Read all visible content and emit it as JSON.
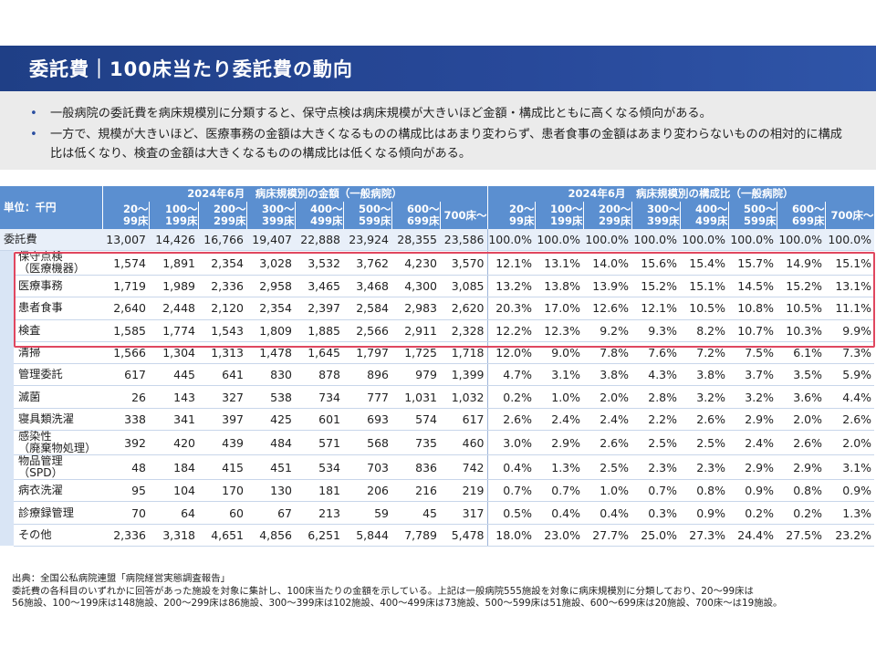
{
  "title": "委託費｜100床当たり委託費の動向",
  "bullets": [
    "一般病院の委託費を病床規模別に分類すると、保守点検は病床規模が大きいほど金額・構成比ともに高くなる傾向がある。",
    "一方で、規模が大きいほど、医療事務の金額は大きくなるものの構成比はあまり変わらず、患者食事の金額はあまり変わらないものの相対的に構成比は低くなり、検査の金額は大きくなるものの構成比は低くなる傾向がある。"
  ],
  "table": {
    "unit_label": "単位：千円",
    "group_amount": "2024年6月　病床規模別の金額（一般病院）",
    "group_ratio": "2024年6月　病床規模別の構成比（一般病院）",
    "columns": [
      [
        "20～",
        "99床"
      ],
      [
        "100～",
        "199床"
      ],
      [
        "200～",
        "299床"
      ],
      [
        "300～",
        "399床"
      ],
      [
        "400～",
        "499床"
      ],
      [
        "500～",
        "599床"
      ],
      [
        "600～",
        "699床"
      ],
      [
        "700床～",
        ""
      ]
    ],
    "total": {
      "label": "委託費",
      "amounts": [
        "13,007",
        "14,426",
        "16,766",
        "19,407",
        "22,888",
        "23,924",
        "28,355",
        "23,586"
      ],
      "ratios": [
        "100.0%",
        "100.0%",
        "100.0%",
        "100.0%",
        "100.0%",
        "100.0%",
        "100.0%",
        "100.0%"
      ]
    },
    "rows": [
      {
        "label1": "保守点検",
        "label2": "（医療機器）",
        "amounts": [
          "1,574",
          "1,891",
          "2,354",
          "3,028",
          "3,532",
          "3,762",
          "4,230",
          "3,570"
        ],
        "ratios": [
          "12.1%",
          "13.1%",
          "14.0%",
          "15.6%",
          "15.4%",
          "15.7%",
          "14.9%",
          "15.1%"
        ]
      },
      {
        "label1": "医療事務",
        "label2": "",
        "amounts": [
          "1,719",
          "1,989",
          "2,336",
          "2,958",
          "3,465",
          "3,468",
          "4,300",
          "3,085"
        ],
        "ratios": [
          "13.2%",
          "13.8%",
          "13.9%",
          "15.2%",
          "15.1%",
          "14.5%",
          "15.2%",
          "13.1%"
        ]
      },
      {
        "label1": "患者食事",
        "label2": "",
        "amounts": [
          "2,640",
          "2,448",
          "2,120",
          "2,354",
          "2,397",
          "2,584",
          "2,983",
          "2,620"
        ],
        "ratios": [
          "20.3%",
          "17.0%",
          "12.6%",
          "12.1%",
          "10.5%",
          "10.8%",
          "10.5%",
          "11.1%"
        ]
      },
      {
        "label1": "検査",
        "label2": "",
        "amounts": [
          "1,585",
          "1,774",
          "1,543",
          "1,809",
          "1,885",
          "2,566",
          "2,911",
          "2,328"
        ],
        "ratios": [
          "12.2%",
          "12.3%",
          "9.2%",
          "9.3%",
          "8.2%",
          "10.7%",
          "10.3%",
          "9.9%"
        ]
      },
      {
        "label1": "清掃",
        "label2": "",
        "amounts": [
          "1,566",
          "1,304",
          "1,313",
          "1,478",
          "1,645",
          "1,797",
          "1,725",
          "1,718"
        ],
        "ratios": [
          "12.0%",
          "9.0%",
          "7.8%",
          "7.6%",
          "7.2%",
          "7.5%",
          "6.1%",
          "7.3%"
        ]
      },
      {
        "label1": "管理委託",
        "label2": "",
        "amounts": [
          "617",
          "445",
          "641",
          "830",
          "878",
          "896",
          "979",
          "1,399"
        ],
        "ratios": [
          "4.7%",
          "3.1%",
          "3.8%",
          "4.3%",
          "3.8%",
          "3.7%",
          "3.5%",
          "5.9%"
        ]
      },
      {
        "label1": "滅菌",
        "label2": "",
        "amounts": [
          "26",
          "143",
          "327",
          "538",
          "734",
          "777",
          "1,031",
          "1,032"
        ],
        "ratios": [
          "0.2%",
          "1.0%",
          "2.0%",
          "2.8%",
          "3.2%",
          "3.2%",
          "3.6%",
          "4.4%"
        ]
      },
      {
        "label1": "寝具類洗濯",
        "label2": "",
        "amounts": [
          "338",
          "341",
          "397",
          "425",
          "601",
          "693",
          "574",
          "617"
        ],
        "ratios": [
          "2.6%",
          "2.4%",
          "2.4%",
          "2.2%",
          "2.6%",
          "2.9%",
          "2.0%",
          "2.6%"
        ]
      },
      {
        "label1": "感染性",
        "label2": "（廃棄物処理）",
        "amounts": [
          "392",
          "420",
          "439",
          "484",
          "571",
          "568",
          "735",
          "460"
        ],
        "ratios": [
          "3.0%",
          "2.9%",
          "2.6%",
          "2.5%",
          "2.5%",
          "2.4%",
          "2.6%",
          "2.0%"
        ]
      },
      {
        "label1": "物品管理",
        "label2": "（SPD）",
        "amounts": [
          "48",
          "184",
          "415",
          "451",
          "534",
          "703",
          "836",
          "742"
        ],
        "ratios": [
          "0.4%",
          "1.3%",
          "2.5%",
          "2.3%",
          "2.3%",
          "2.9%",
          "2.9%",
          "3.1%"
        ]
      },
      {
        "label1": "病衣洗濯",
        "label2": "",
        "amounts": [
          "95",
          "104",
          "170",
          "130",
          "181",
          "206",
          "216",
          "219"
        ],
        "ratios": [
          "0.7%",
          "0.7%",
          "1.0%",
          "0.7%",
          "0.8%",
          "0.9%",
          "0.8%",
          "0.9%"
        ]
      },
      {
        "label1": "診療録管理",
        "label2": "",
        "amounts": [
          "70",
          "64",
          "60",
          "67",
          "213",
          "59",
          "45",
          "317"
        ],
        "ratios": [
          "0.5%",
          "0.4%",
          "0.4%",
          "0.3%",
          "0.9%",
          "0.2%",
          "0.2%",
          "1.3%"
        ]
      },
      {
        "label1": "その他",
        "label2": "",
        "amounts": [
          "2,336",
          "3,318",
          "4,651",
          "4,856",
          "6,251",
          "5,844",
          "7,789",
          "5,478"
        ],
        "ratios": [
          "18.0%",
          "23.0%",
          "27.7%",
          "25.0%",
          "27.3%",
          "24.4%",
          "27.5%",
          "23.2%"
        ]
      }
    ]
  },
  "footnote": [
    "出典：全国公私病院連盟「病院経営実態調査報告」",
    "委託費の各科目のいずれかに回答があった施設を対象に集計し、100床当たりの金額を示している。上記は一般病院555施設を対象に病床規模別に分類しており、20～99床は",
    "56施設、100～199床は148施設、200～299床は86施設、300～399床は102施設、400～499床は73施設、500～599床は51施設、600～699床は20施設、700床～は19施設。"
  ]
}
